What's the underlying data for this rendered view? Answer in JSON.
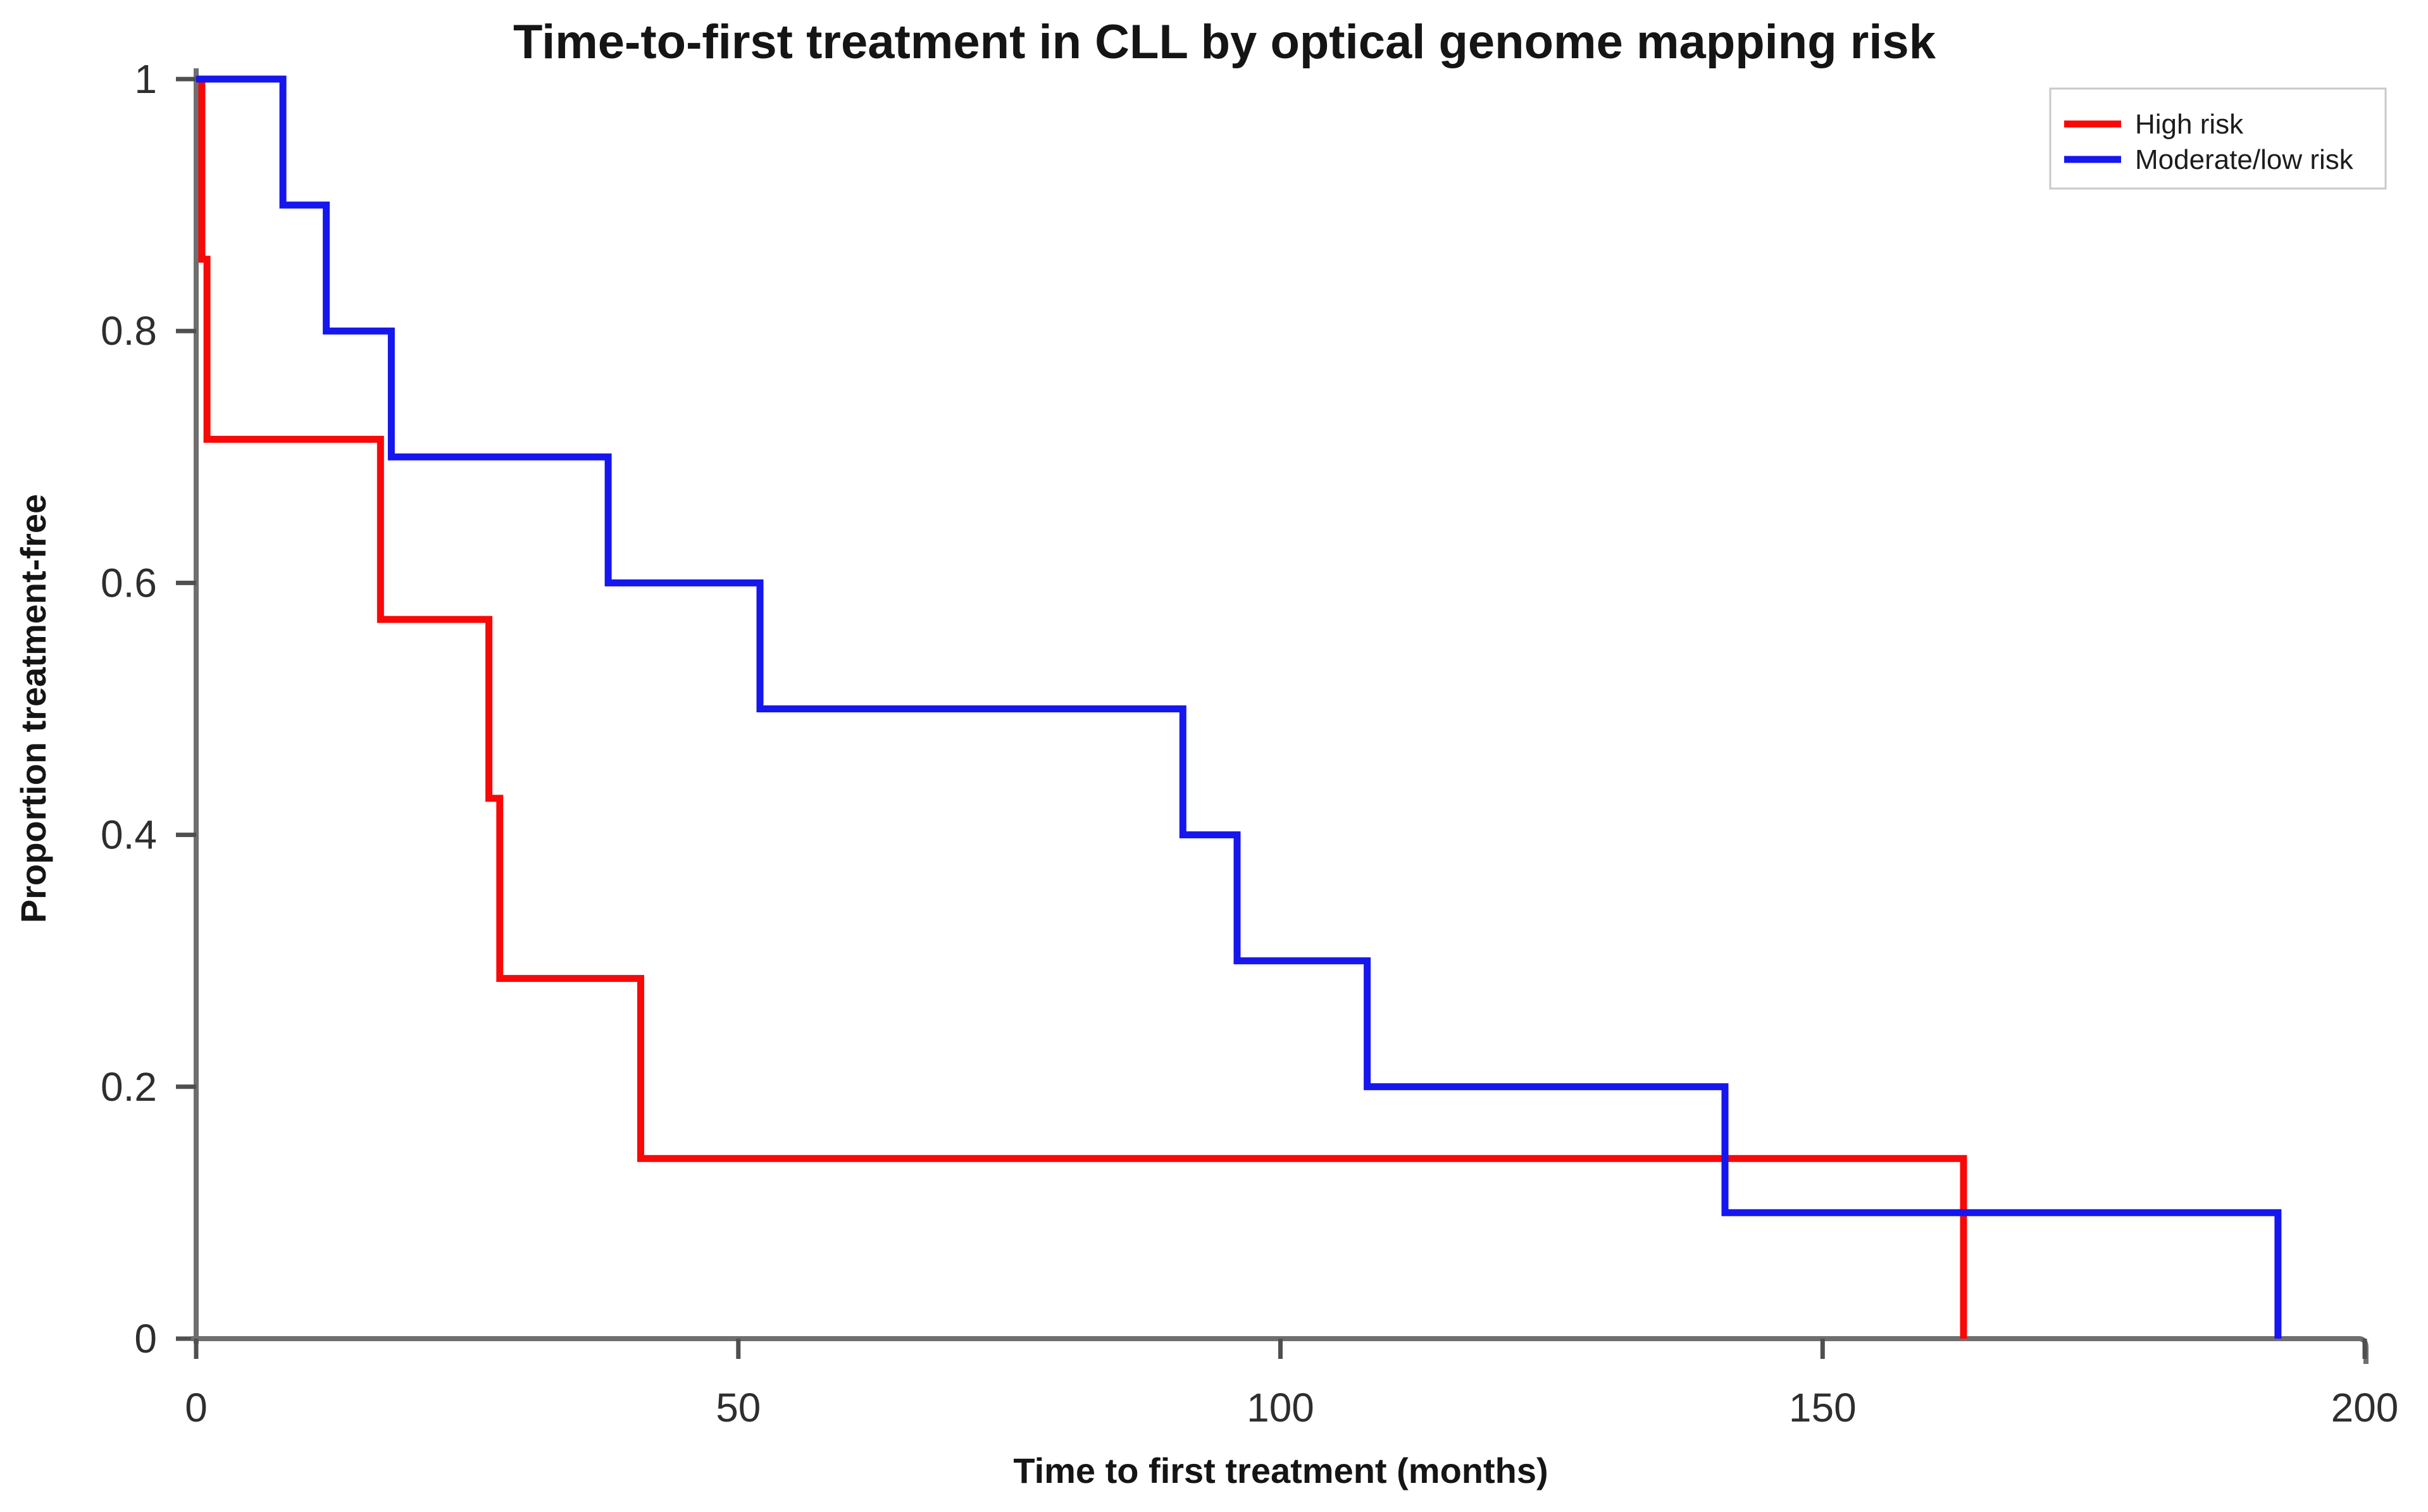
{
  "page": {
    "background_color": "#ffffff"
  },
  "chart_data": {
    "type": "line",
    "subtype": "kaplan-meier-step",
    "title": "Time-to-first treatment in CLL by optical genome mapping risk",
    "xlabel": "Time to first treatment (months)",
    "ylabel": "Proportion treatment-free",
    "xlim": [
      0,
      200
    ],
    "ylim": [
      0,
      1
    ],
    "x_ticks": [
      0,
      50,
      100,
      150,
      200
    ],
    "y_ticks": [
      0,
      0.2,
      0.4,
      0.6,
      0.8,
      1
    ],
    "y_tick_labels": [
      "0",
      "0.2",
      "0.4",
      "0.6",
      "0.8",
      "1"
    ],
    "grid": false,
    "legend_position": "top-right",
    "axis_color": "#6f6f6f",
    "tick_color": "#4f4f4f",
    "tick_label_color": "#2e2e2e",
    "series": [
      {
        "name": "High risk",
        "color": "#f90808",
        "start": {
          "t_months": 0,
          "survival": 1.0
        },
        "drop_times_months": [
          0,
          1,
          17,
          27,
          28,
          41,
          163
        ],
        "survival_after_drop": [
          0.857,
          0.714,
          0.571,
          0.429,
          0.286,
          0.143,
          0
        ]
      },
      {
        "name": "Moderate/low risk",
        "color": "#1616ee",
        "start": {
          "t_months": 0,
          "survival": 1.0
        },
        "drop_times_months": [
          8,
          12,
          18,
          38,
          52,
          91,
          96,
          108,
          141,
          192
        ],
        "survival_after_drop": [
          0.9,
          0.8,
          0.7,
          0.6,
          0.5,
          0.4,
          0.3,
          0.2,
          0.1,
          0
        ]
      }
    ]
  }
}
